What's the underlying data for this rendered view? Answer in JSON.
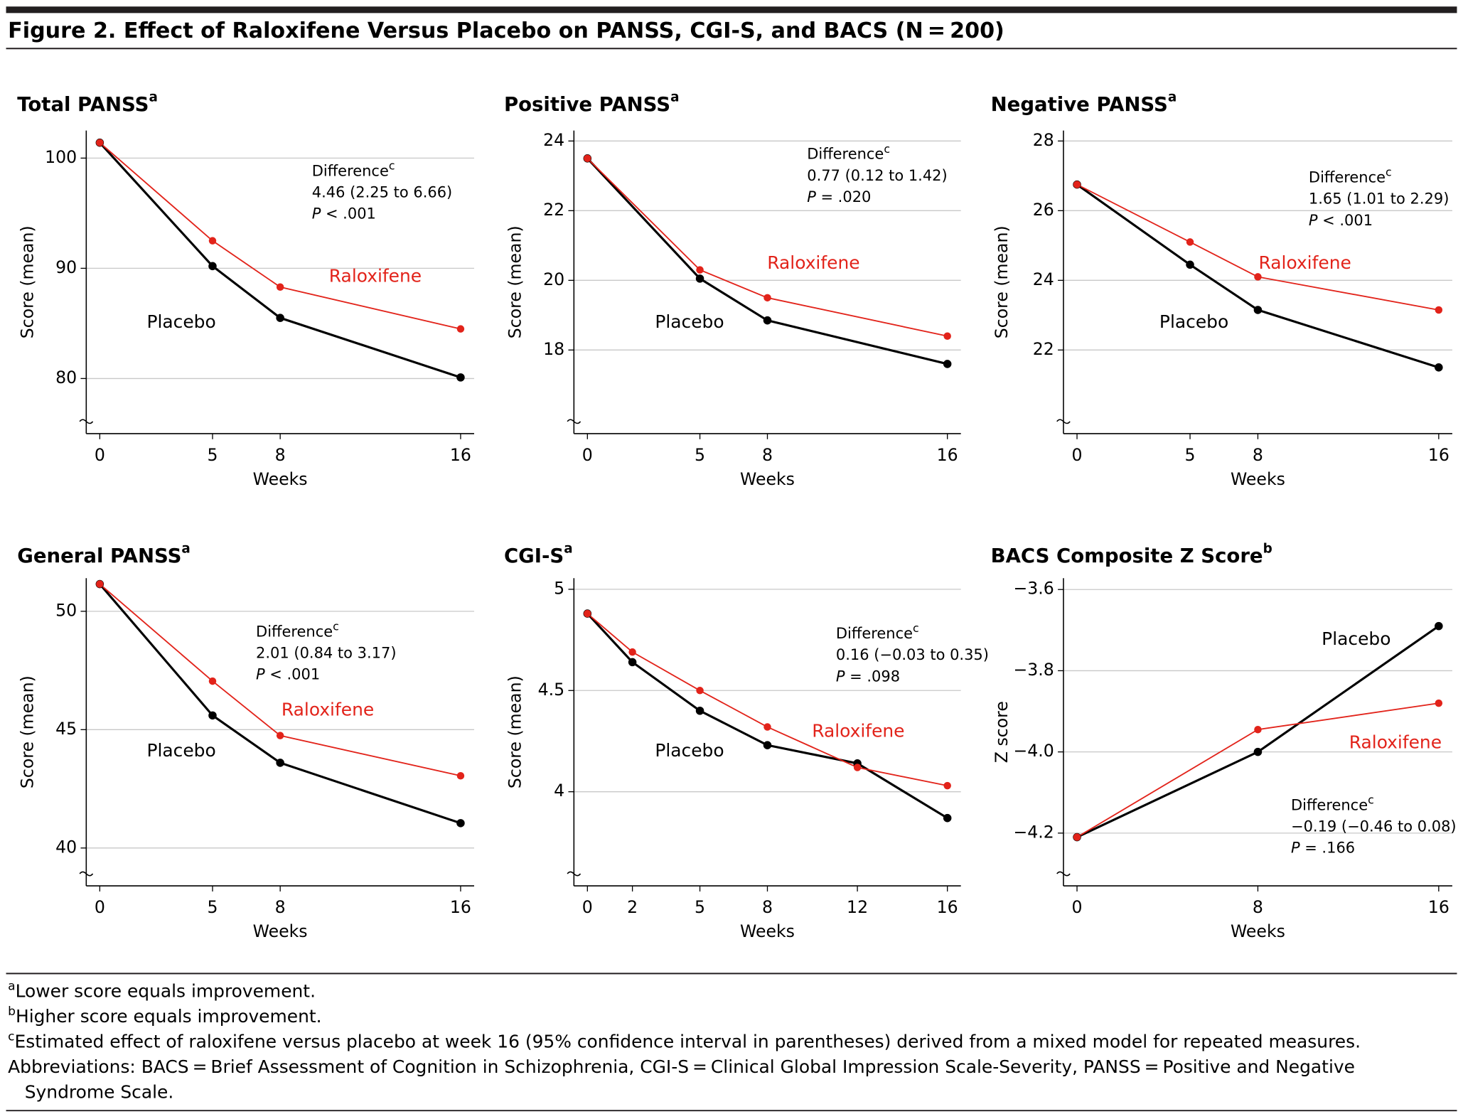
{
  "title": "Figure 2. Effect of Raloxifene Versus Placebo on PANSS, CGI-S, and BACS (N = 200)",
  "footnotes": [
    {
      "mark": "a",
      "text": "Lower score equals improvement."
    },
    {
      "mark": "b",
      "text": "Higher score equals improvement."
    },
    {
      "mark": "c",
      "text": "Estimated effect of raloxifene versus placebo at week 16 (95% confidence interval in parentheses) derived from a mixed model for repeated measures."
    },
    {
      "lines": [
        "Abbreviations: BACS = Brief Assessment of Cognition in Schizophrenia, CGI-S = Clinical Global Impression Scale-Severity, PANSS = Positive and Negative",
        "Syndrome Scale."
      ]
    }
  ],
  "chart_data": [
    {
      "type": "line",
      "title": "Total PANSS",
      "title_sup": "a",
      "ylabel": "Score (mean)",
      "xlabel": "Weeks",
      "x": [
        0,
        5,
        8,
        16
      ],
      "xlim": [
        -0.6,
        16.6
      ],
      "xticks": [
        0,
        5,
        8,
        16
      ],
      "ylim": [
        75,
        102.5
      ],
      "yticks": [
        80,
        90,
        100
      ],
      "series": [
        {
          "name": "Placebo",
          "color": "#000000",
          "values": [
            101.4,
            90.2,
            85.5,
            80.1
          ]
        },
        {
          "name": "Raloxifene",
          "color": "#e2231a",
          "values": [
            101.4,
            92.5,
            88.3,
            84.5
          ]
        }
      ],
      "annotation": {
        "label": "Difference",
        "sup": "c",
        "estimate": "4.46 (2.25 to 6.66)",
        "p": "P",
        "p_value": "< .001"
      }
    },
    {
      "type": "line",
      "title": "Positive PANSS",
      "title_sup": "a",
      "ylabel": "Score (mean)",
      "xlabel": "Weeks",
      "x": [
        0,
        5,
        8,
        16
      ],
      "xlim": [
        -0.6,
        16.6
      ],
      "xticks": [
        0,
        5,
        8,
        16
      ],
      "ylim": [
        15.6,
        24.3
      ],
      "yticks": [
        18,
        20,
        22,
        24
      ],
      "series": [
        {
          "name": "Placebo",
          "color": "#000000",
          "values": [
            23.5,
            20.05,
            18.85,
            17.6
          ]
        },
        {
          "name": "Raloxifene",
          "color": "#e2231a",
          "values": [
            23.5,
            20.3,
            19.5,
            18.4
          ]
        }
      ],
      "annotation": {
        "label": "Difference",
        "sup": "c",
        "estimate": "0.77 (0.12 to 1.42)",
        "p": "P",
        "p_value": "= .020"
      }
    },
    {
      "type": "line",
      "title": "Negative PANSS",
      "title_sup": "a",
      "ylabel": "Score (mean)",
      "xlabel": "Weeks",
      "x": [
        0,
        5,
        8,
        16
      ],
      "xlim": [
        -0.6,
        16.6
      ],
      "xticks": [
        0,
        5,
        8,
        16
      ],
      "ylim": [
        19.6,
        28.3
      ],
      "yticks": [
        22,
        24,
        26,
        28
      ],
      "series": [
        {
          "name": "Placebo",
          "color": "#000000",
          "values": [
            26.75,
            24.45,
            23.15,
            21.5
          ]
        },
        {
          "name": "Raloxifene",
          "color": "#e2231a",
          "values": [
            26.75,
            25.1,
            24.1,
            23.15
          ]
        }
      ],
      "annotation": {
        "label": "Difference",
        "sup": "c",
        "estimate": "1.65 (1.01 to 2.29)",
        "p": "P",
        "p_value": "< .001"
      }
    },
    {
      "type": "line",
      "title": "General PANSS",
      "title_sup": "a",
      "ylabel": "Score (mean)",
      "xlabel": "Weeks",
      "x": [
        0,
        5,
        8,
        16
      ],
      "xlim": [
        -0.6,
        16.6
      ],
      "xticks": [
        0,
        5,
        8,
        16
      ],
      "ylim": [
        38.4,
        51.4
      ],
      "yticks": [
        40,
        45,
        50
      ],
      "series": [
        {
          "name": "Placebo",
          "color": "#000000",
          "values": [
            51.15,
            45.6,
            43.6,
            41.05
          ]
        },
        {
          "name": "Raloxifene",
          "color": "#e2231a",
          "values": [
            51.15,
            47.05,
            44.75,
            43.05
          ]
        }
      ],
      "annotation": {
        "label": "Difference",
        "sup": "c",
        "estimate": "2.01 (0.84 to 3.17)",
        "p": "P",
        "p_value": "< .001"
      }
    },
    {
      "type": "line",
      "title": "CGI-S",
      "title_sup": "a",
      "ylabel": "Score (mean)",
      "xlabel": "Weeks",
      "x": [
        0,
        2,
        5,
        8,
        12,
        16
      ],
      "xlim": [
        -0.6,
        16.6
      ],
      "xticks": [
        0,
        2,
        5,
        8,
        12,
        16
      ],
      "ylim": [
        3.535,
        5.055
      ],
      "yticks": [
        4,
        4.5,
        5
      ],
      "series": [
        {
          "name": "Placebo",
          "color": "#000000",
          "values": [
            4.88,
            4.64,
            4.4,
            4.23,
            4.14,
            3.87
          ]
        },
        {
          "name": "Raloxifene",
          "color": "#e2231a",
          "values": [
            4.88,
            4.69,
            4.5,
            4.32,
            4.12,
            4.03
          ]
        }
      ],
      "annotation": {
        "label": "Difference",
        "sup": "c",
        "estimate": "0.16 (−0.03 to 0.35)",
        "p": "P",
        "p_value": "= .098"
      }
    },
    {
      "type": "line",
      "title": "BACS Composite Z Score",
      "title_sup": "b",
      "ylabel": "Z score",
      "xlabel": "Weeks",
      "x": [
        0,
        8,
        16
      ],
      "xlim": [
        -0.6,
        16.6
      ],
      "xticks": [
        0,
        8,
        16
      ],
      "ylim": [
        -4.33,
        -3.572
      ],
      "yticks": [
        {
          "value": -4.2,
          "label": "−4.2"
        },
        {
          "value": -4.0,
          "label": "−4.0"
        },
        {
          "value": -3.8,
          "label": "−3.8"
        },
        {
          "value": -3.6,
          "label": "−3.6"
        }
      ],
      "series": [
        {
          "name": "Placebo",
          "color": "#000000",
          "values": [
            -4.21,
            -4.0,
            -3.69
          ]
        },
        {
          "name": "Raloxifene",
          "color": "#e2231a",
          "values": [
            -4.21,
            -3.945,
            -3.88
          ]
        }
      ],
      "annotation": {
        "label": "Difference",
        "sup": "c",
        "estimate": "−0.19 (−0.46 to 0.08)",
        "p": "P",
        "p_value": "= .166"
      }
    }
  ]
}
